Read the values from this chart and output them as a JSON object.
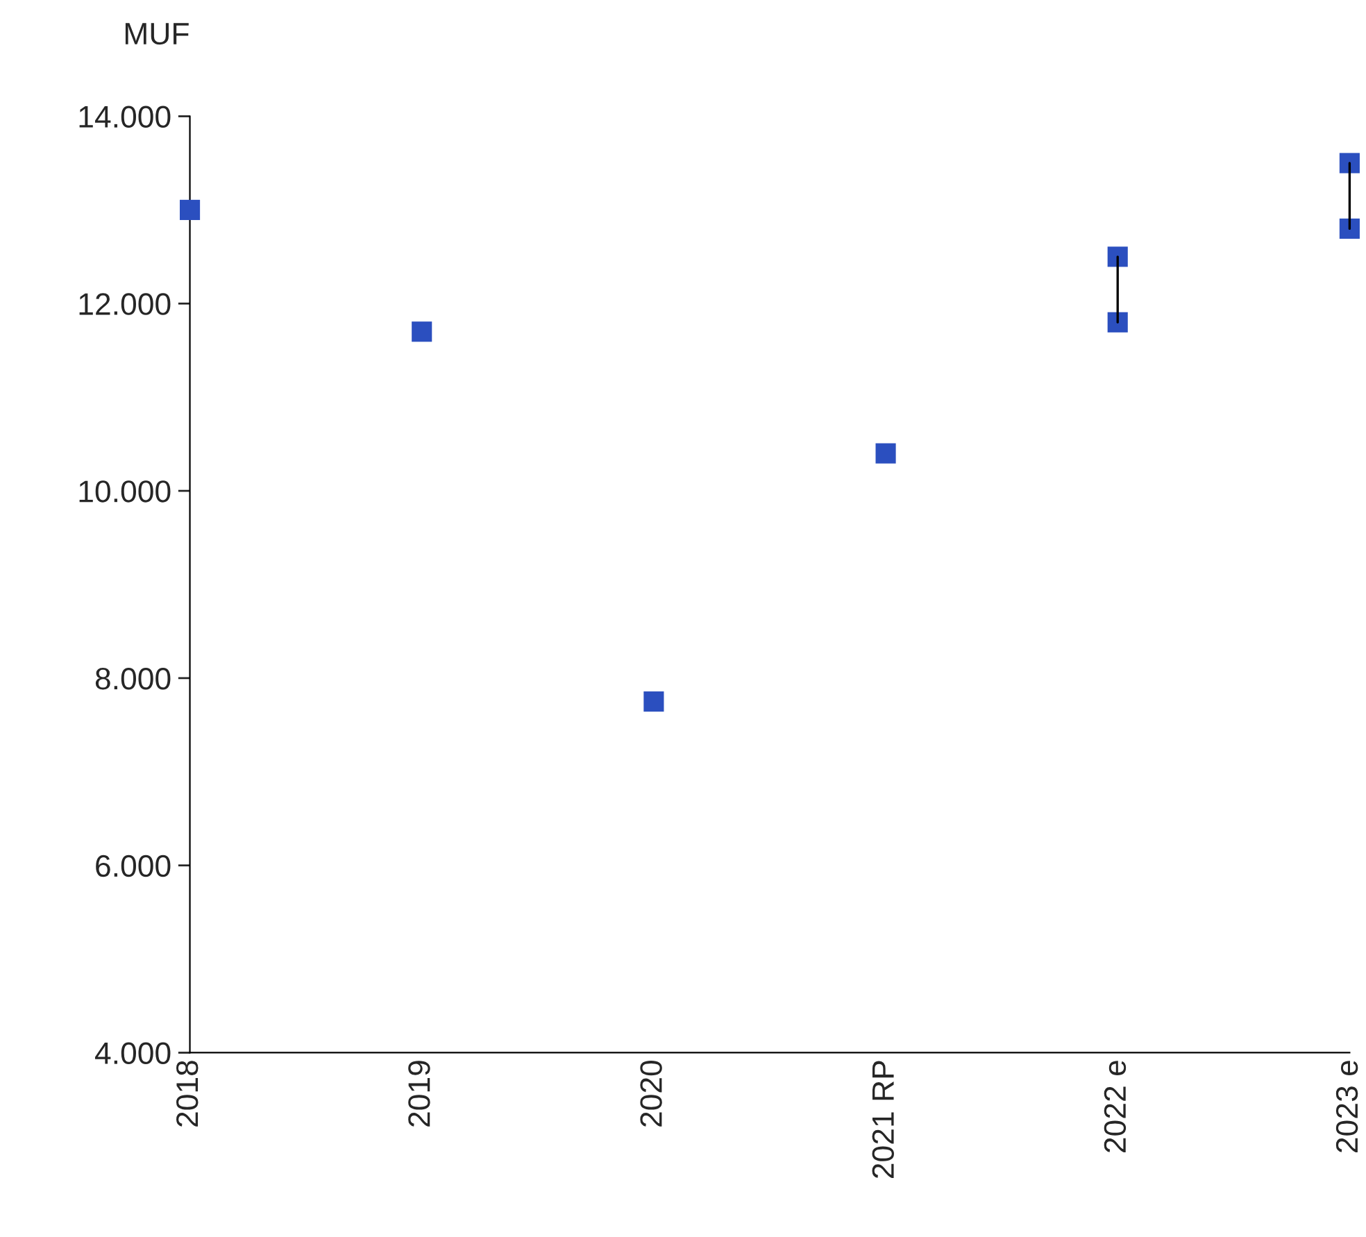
{
  "chart_data": {
    "type": "scatter",
    "ylabel": "MUF",
    "marker": "square",
    "categories": [
      "2018",
      "2019",
      "2020",
      "2021 RP",
      "2022 e",
      "2023 e"
    ],
    "series": [
      {
        "color": "#2b4fbf",
        "values": [
          13000,
          11700,
          7750,
          10400,
          12500,
          13500
        ]
      },
      {
        "color": "#2b4fbf",
        "values": [
          null,
          null,
          null,
          null,
          11800,
          12800
        ]
      },
      {
        "type": "line",
        "marker": "none",
        "color": "#000000",
        "x": [
          "2022 e",
          "2022 e"
        ],
        "values": [
          11800,
          12500
        ]
      },
      {
        "type": "line",
        "marker": "none",
        "color": "#000000",
        "x": [
          "2023 e",
          "2023 e"
        ],
        "values": [
          12800,
          13500
        ]
      }
    ],
    "ylim": [
      4000,
      14000
    ],
    "yticks": [
      {
        "value": 4000,
        "label": "4.000"
      },
      {
        "value": 6000,
        "label": "6.000"
      },
      {
        "value": 8000,
        "label": "8.000"
      },
      {
        "value": 10000,
        "label": "10.000"
      },
      {
        "value": 12000,
        "label": "12.000"
      },
      {
        "value": 14000,
        "label": "14.000"
      }
    ],
    "grid": false,
    "legend": false
  }
}
